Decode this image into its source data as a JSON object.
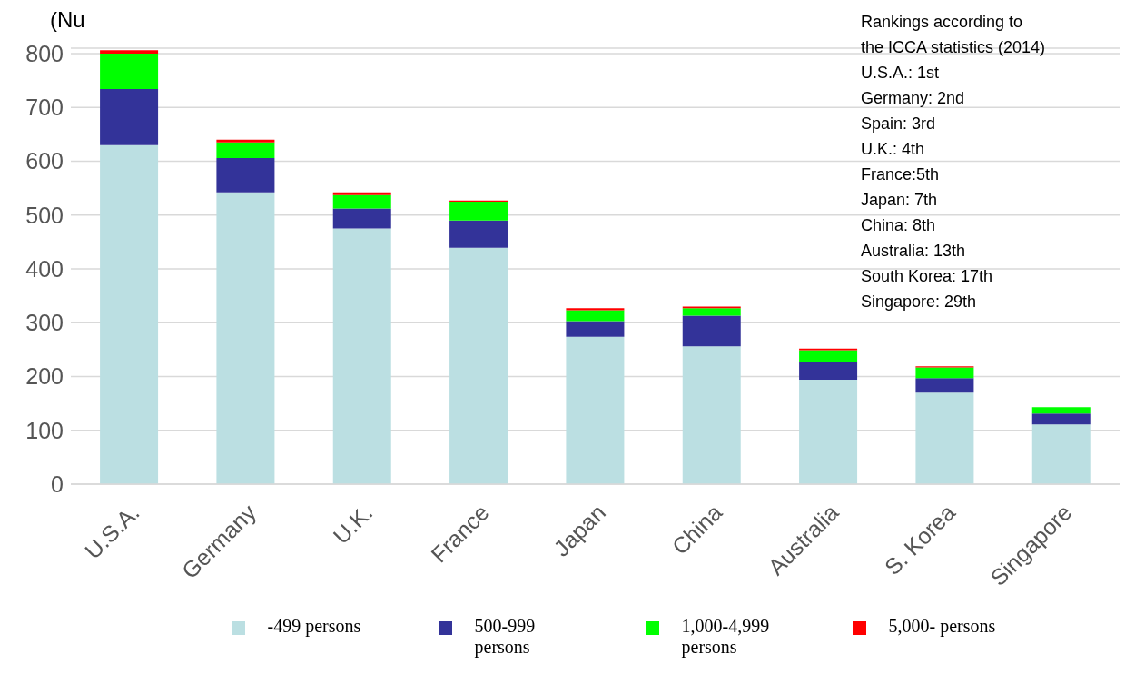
{
  "chart_data": {
    "type": "bar",
    "stacked": true,
    "ylabel": "(Nu",
    "categories": [
      "U.S.A.",
      "Germany",
      "U.K.",
      "France",
      "Japan",
      "China",
      "Australia",
      "S. Korea",
      "Singapore"
    ],
    "series": [
      {
        "name": "-499 persons",
        "color": "#bbdfe2",
        "values": [
          630,
          542,
          475,
          439,
          274,
          256,
          194,
          170,
          111
        ]
      },
      {
        "name": "500-999 persons",
        "color": "#333399",
        "values": [
          104,
          64,
          37,
          51,
          29,
          57,
          32,
          27,
          20
        ]
      },
      {
        "name": "1,000-4,999 persons",
        "color": "#00ff00",
        "values": [
          66,
          29,
          25,
          35,
          20,
          14,
          23,
          20,
          12
        ]
      },
      {
        "name": "5,000- persons",
        "color": "#ff0000",
        "values": [
          6,
          5,
          5,
          2,
          4,
          3,
          3,
          2,
          0
        ]
      }
    ],
    "ylim": [
      0,
      810
    ],
    "yticks": [
      0,
      100,
      200,
      300,
      400,
      500,
      600,
      700,
      800
    ],
    "grid": "y",
    "legend": "bottom",
    "annotations": [
      "Rankings according to",
      "the ICCA statistics (2014)",
      "U.S.A.: 1st",
      "Germany: 2nd",
      "Spain: 3rd",
      "U.K.: 4th",
      "France:5th",
      "Japan: 7th",
      "China: 8th",
      "Australia: 13th",
      "South Korea: 17th",
      "Singapore: 29th"
    ]
  }
}
